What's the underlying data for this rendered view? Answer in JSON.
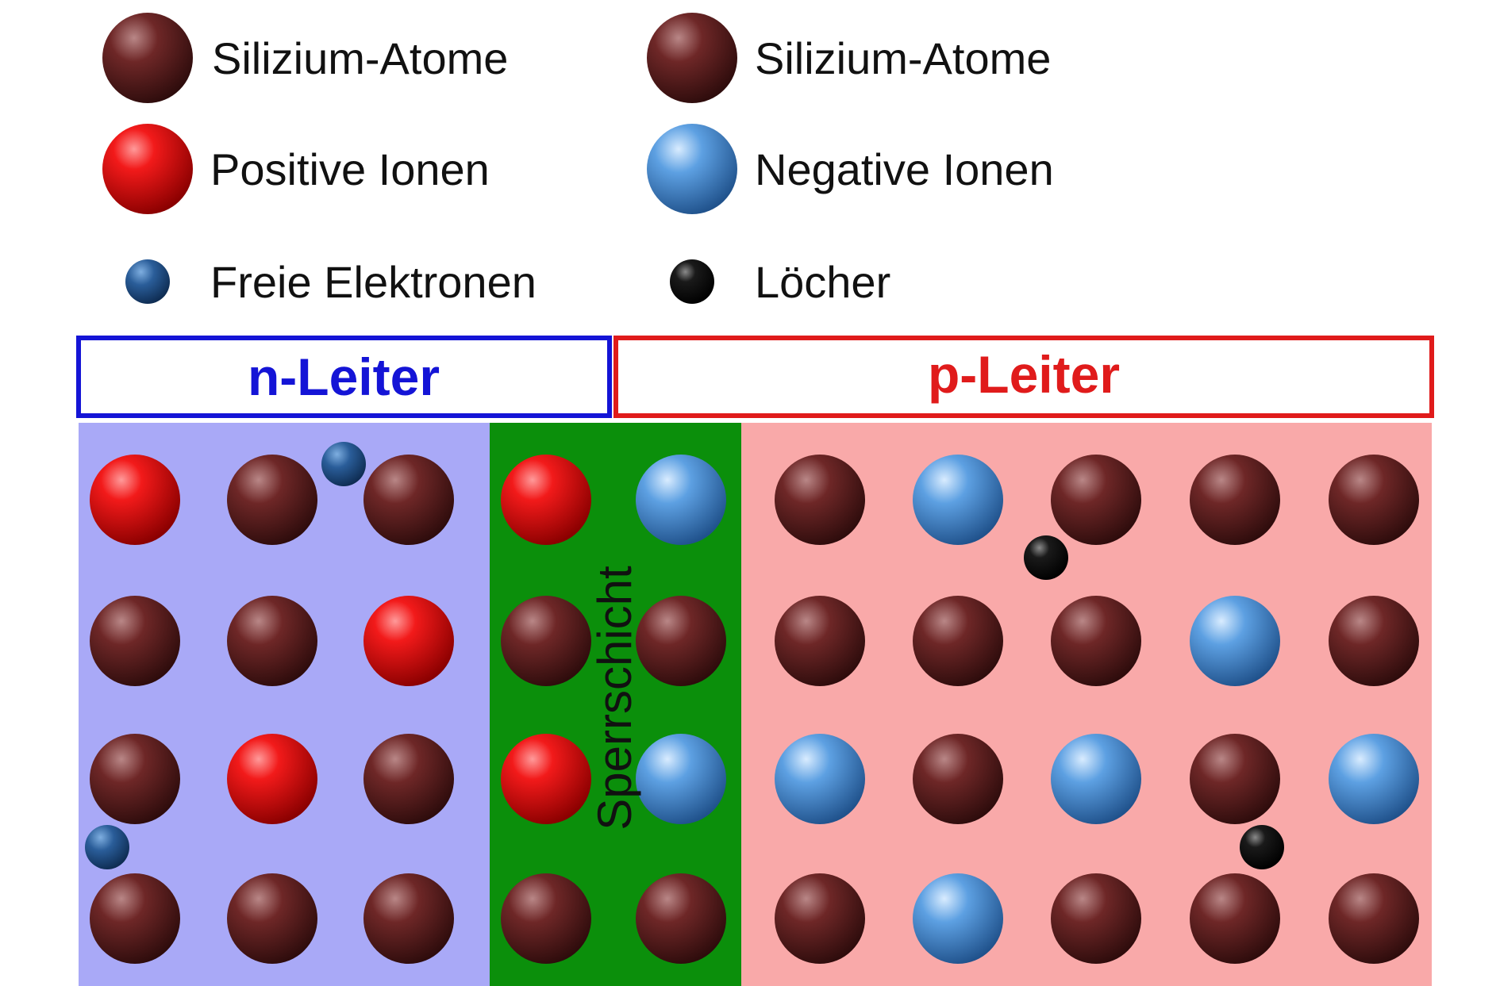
{
  "legend": {
    "silicon_left": "Silizium-Atome",
    "silicon_right": "Silizium-Atome",
    "positive_ions": "Positive Ionen",
    "negative_ions": "Negative Ionen",
    "free_electrons": "Freie Elektronen",
    "holes": "Löcher"
  },
  "regions": {
    "n_label": "n-Leiter",
    "p_label": "p-Leiter",
    "depletion_label": "Sperrschicht"
  },
  "colors": {
    "n_region": "#a9a9f7",
    "p_region": "#f9a9a9",
    "depletion_zone": "#0b8f0b",
    "n_accent": "#1414d6",
    "p_accent": "#e01b1b",
    "silicon": "#5a1d1d",
    "positive_ion": "#e81010",
    "negative_ion": "#4c8fd6",
    "electron": "#1e4d8c",
    "hole": "#000000"
  },
  "particle_types": {
    "si": "silicon atom",
    "pos": "positive ion",
    "neg": "negative ion",
    "e": "free electron",
    "h": "hole"
  },
  "lattice": {
    "n_region": [
      [
        "pos",
        "si",
        "si"
      ],
      [
        "si",
        "si",
        "pos"
      ],
      [
        "si",
        "pos",
        "si"
      ],
      [
        "si",
        "si",
        "si"
      ]
    ],
    "depletion": [
      [
        "pos",
        "neg"
      ],
      [
        "si",
        "si"
      ],
      [
        "pos",
        "neg"
      ],
      [
        "si",
        "si"
      ]
    ],
    "p_region": [
      [
        "si",
        "neg",
        "si",
        "si",
        "si"
      ],
      [
        "si",
        "si",
        "si",
        "neg",
        "si"
      ],
      [
        "neg",
        "si",
        "neg",
        "si",
        "neg"
      ],
      [
        "si",
        "neg",
        "si",
        "si",
        "si"
      ]
    ]
  },
  "carriers": {
    "electrons": 2,
    "holes": 2
  }
}
